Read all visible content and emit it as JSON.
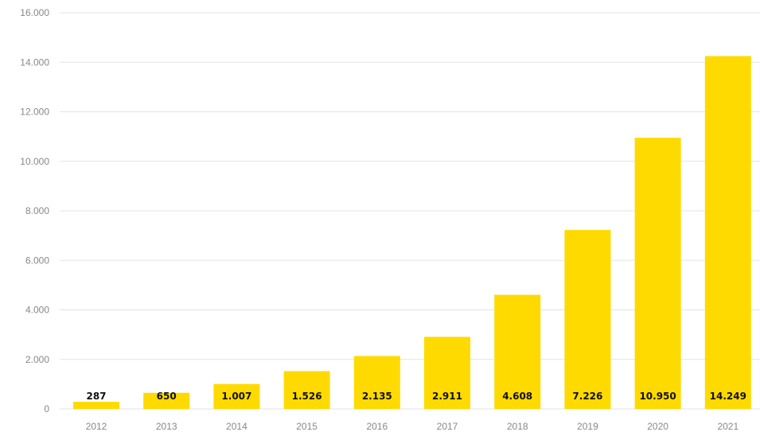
{
  "chart_data": {
    "type": "bar",
    "title": "",
    "xlabel": "",
    "ylabel": "",
    "categories": [
      "2012",
      "2013",
      "2014",
      "2015",
      "2016",
      "2017",
      "2018",
      "2019",
      "2020",
      "2021"
    ],
    "values": [
      287,
      650,
      1007,
      1526,
      2135,
      2911,
      4608,
      7226,
      10950,
      14249
    ],
    "value_labels": [
      "287",
      "650",
      "1.007",
      "1.526",
      "2.135",
      "2.911",
      "4.608",
      "7.226",
      "10.950",
      "14.249"
    ],
    "ylim": [
      0,
      16000
    ],
    "y_ticks": [
      {
        "value": 0,
        "label": "0"
      },
      {
        "value": 2000,
        "label": "2.000"
      },
      {
        "value": 4000,
        "label": "4.000"
      },
      {
        "value": 6000,
        "label": "6.000"
      },
      {
        "value": 8000,
        "label": "8.000"
      },
      {
        "value": 10000,
        "label": "10.000"
      },
      {
        "value": 12000,
        "label": "12.000"
      },
      {
        "value": 14000,
        "label": "14.000"
      },
      {
        "value": 16000,
        "label": "16.000"
      }
    ],
    "grid": true,
    "legend": "none",
    "bar_color": "#FFDA00",
    "label_position": "inside-bottom"
  }
}
